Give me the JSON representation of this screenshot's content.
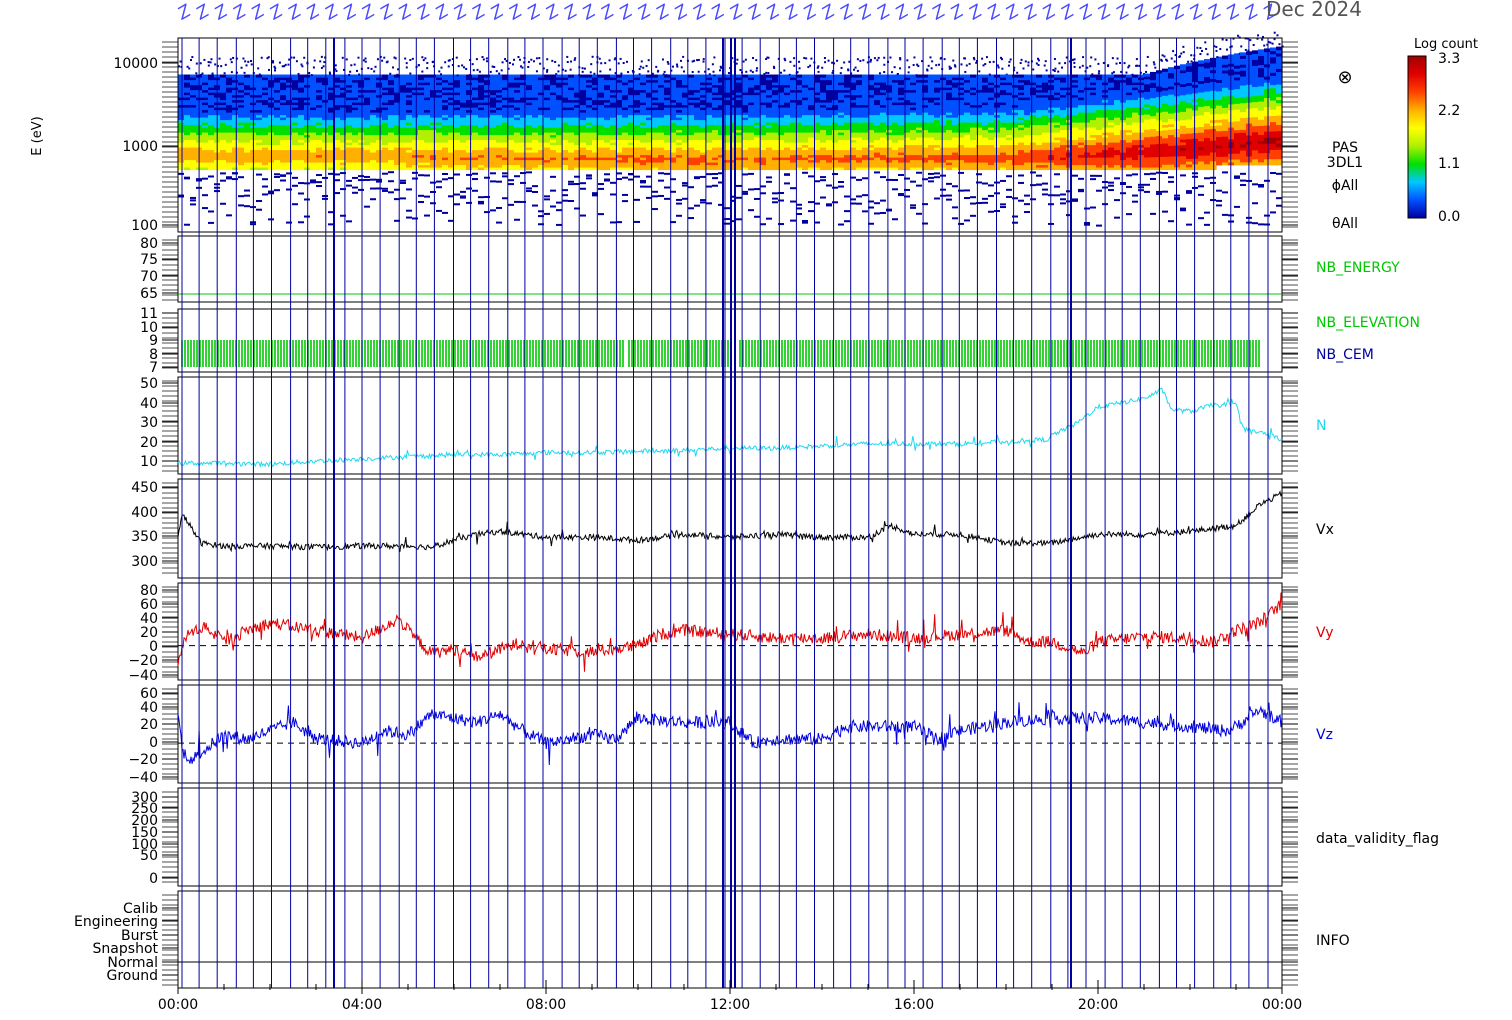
{
  "header": {
    "date_label": "Dec 2024",
    "overlay_mark": "Z"
  },
  "colorbar": {
    "title": "Log count",
    "ticks": [
      "3.3",
      "2.2",
      "1.1",
      "0.0"
    ],
    "stops": [
      "#0000a0",
      "#0050ff",
      "#00c8ff",
      "#00e000",
      "#b0f000",
      "#ffff00",
      "#ffb000",
      "#ff4000",
      "#e00000",
      "#a00000"
    ]
  },
  "time_axis": {
    "ticks": [
      "00:00",
      "04:00",
      "08:00",
      "12:00",
      "16:00",
      "20:00",
      "00:00"
    ],
    "range_hours": [
      0,
      24
    ]
  },
  "colors": {
    "event_line": "#0000a0",
    "frame": "#000000",
    "nb_energy": "#00c800",
    "nb_elevation": "#00c800",
    "nb_cem": "#0000a0",
    "N": "#20d8f0",
    "Vx": "#000000",
    "Vy": "#e00000",
    "Vz": "#0000e0"
  },
  "panels": {
    "spectrogram": {
      "ylabel": "E (eV)",
      "ticks": [
        "10000",
        "1000",
        "100"
      ],
      "labels": [
        "⊗",
        "PAS",
        "3DL1",
        "ϕAll",
        "θAll"
      ]
    },
    "nb_energy": {
      "ticks": [
        "80",
        "75",
        "70",
        "65"
      ],
      "label": "NB_ENERGY"
    },
    "nb_elev": {
      "ticks": [
        "11",
        "10",
        "9",
        "8",
        "7"
      ],
      "label1": "NB_ELEVATION",
      "label2": "NB_CEM"
    },
    "density": {
      "ticks": [
        "50",
        "40",
        "30",
        "20",
        "10"
      ],
      "label": "N"
    },
    "vx": {
      "ticks": [
        "450",
        "400",
        "350",
        "300"
      ],
      "label": "Vx"
    },
    "vy": {
      "ticks": [
        "80",
        "60",
        "40",
        "20",
        "0",
        "−20",
        "−40"
      ],
      "label": "Vy"
    },
    "vz": {
      "ticks": [
        "60",
        "40",
        "20",
        "0",
        "−20",
        "−40"
      ],
      "label": "Vz"
    },
    "validity": {
      "ticks": [
        "300",
        "250",
        "200",
        "150",
        "100",
        "50",
        "0"
      ],
      "label": "data_validity_flag"
    },
    "info": {
      "ticks": [
        "Calib",
        "Engineering",
        "Burst",
        "Snapshot",
        "Normal",
        "Ground"
      ],
      "label": "INFO"
    }
  },
  "chart_data": [
    {
      "type": "heatmap",
      "name": "PAS 3DL1 energy spectrogram",
      "ylabel": "E (eV)",
      "yscale": "log",
      "ylim": [
        100,
        13000
      ],
      "colorbar": {
        "label": "Log count",
        "range": [
          0.0,
          3.3
        ]
      },
      "x_hours": [
        0,
        2,
        4,
        6,
        8,
        10,
        12,
        14,
        16,
        18,
        20,
        22,
        24
      ],
      "peak_energy_eV": [
        700,
        680,
        680,
        650,
        640,
        620,
        620,
        640,
        650,
        640,
        700,
        800,
        1000
      ],
      "peak_log_count": [
        2.3,
        2.3,
        2.3,
        2.4,
        2.4,
        2.5,
        2.5,
        2.5,
        2.5,
        2.6,
        2.9,
        3.1,
        3.2
      ]
    },
    {
      "type": "line",
      "name": "NB_ENERGY",
      "ylim": [
        60,
        82
      ],
      "x_hours": [
        0,
        24
      ],
      "values": [
        64,
        64
      ]
    },
    {
      "type": "bar",
      "name": "NB_ELEVATION",
      "ylim": [
        7,
        11
      ],
      "band": [
        7,
        9
      ],
      "x_hours": [
        0,
        24
      ]
    },
    {
      "type": "line",
      "name": "N",
      "ylim": [
        5,
        50
      ],
      "x_hours": [
        0,
        1,
        2,
        3,
        4,
        5,
        6,
        7,
        8,
        9,
        10,
        11,
        12,
        13,
        14,
        15,
        16,
        17,
        18,
        18.9,
        19,
        19.5,
        20,
        20.5,
        21,
        21.4,
        21.6,
        22,
        22.5,
        23,
        23.2,
        23.6,
        24
      ],
      "values": [
        10,
        10,
        9.5,
        11,
        12,
        13,
        14,
        14,
        15,
        15,
        15.5,
        16,
        17,
        17,
        18,
        19,
        19,
        19,
        20,
        21,
        23,
        28,
        36,
        38,
        40,
        44,
        35,
        34,
        37,
        37,
        25,
        24,
        21
      ]
    },
    {
      "type": "line",
      "name": "Vx",
      "ylim": [
        285,
        455
      ],
      "x_hours": [
        0,
        0.1,
        0.5,
        1,
        2,
        3,
        4,
        5,
        5.5,
        6,
        6.5,
        7,
        8,
        9,
        10,
        11,
        12,
        13,
        14,
        15,
        15.5,
        16,
        17,
        18,
        19,
        20,
        21,
        22,
        23,
        23.5,
        24
      ],
      "values": [
        355,
        395,
        345,
        340,
        340,
        338,
        340,
        340,
        338,
        350,
        360,
        365,
        355,
        355,
        350,
        360,
        355,
        360,
        355,
        355,
        375,
        360,
        360,
        345,
        345,
        360,
        360,
        365,
        375,
        410,
        430
      ]
    },
    {
      "type": "line",
      "name": "Vy",
      "ylim": [
        -45,
        82
      ],
      "x_hours": [
        0,
        0.2,
        0.6,
        1,
        1.5,
        2,
        3,
        4,
        4.8,
        5,
        5.5,
        6,
        6.5,
        7,
        7.5,
        8,
        9,
        10,
        10.5,
        11,
        12,
        13,
        14,
        15,
        16,
        17,
        18,
        18.5,
        19,
        19.7,
        20,
        21,
        22,
        22.5,
        23,
        23.5,
        24
      ],
      "values": [
        -20,
        15,
        25,
        5,
        20,
        30,
        20,
        10,
        35,
        20,
        -10,
        -5,
        -15,
        -5,
        5,
        -5,
        -8,
        0,
        15,
        20,
        15,
        10,
        10,
        15,
        10,
        15,
        20,
        5,
        5,
        -10,
        5,
        12,
        10,
        5,
        20,
        30,
        55
      ]
    },
    {
      "type": "line",
      "name": "Vz",
      "ylim": [
        -48,
        70
      ],
      "x_hours": [
        0,
        0.1,
        0.3,
        1,
        1.5,
        2,
        2.5,
        3,
        4,
        4.5,
        5,
        5.5,
        6,
        6.5,
        7,
        7.5,
        8,
        9,
        9.5,
        10,
        11,
        12,
        12.5,
        13,
        14,
        14.5,
        15,
        16,
        16.5,
        17,
        18,
        19,
        20,
        21,
        22,
        22.8,
        23,
        23.5,
        24
      ],
      "values": [
        35,
        -10,
        -20,
        10,
        5,
        15,
        25,
        5,
        0,
        15,
        10,
        35,
        30,
        25,
        35,
        15,
        0,
        10,
        5,
        30,
        25,
        25,
        0,
        5,
        5,
        20,
        20,
        20,
        5,
        15,
        25,
        30,
        30,
        25,
        20,
        15,
        20,
        40,
        25
      ]
    },
    {
      "type": "table",
      "name": "INFO",
      "categories": [
        "Calib",
        "Engineering",
        "Burst",
        "Snapshot",
        "Normal",
        "Ground"
      ],
      "active": "Normal"
    }
  ]
}
